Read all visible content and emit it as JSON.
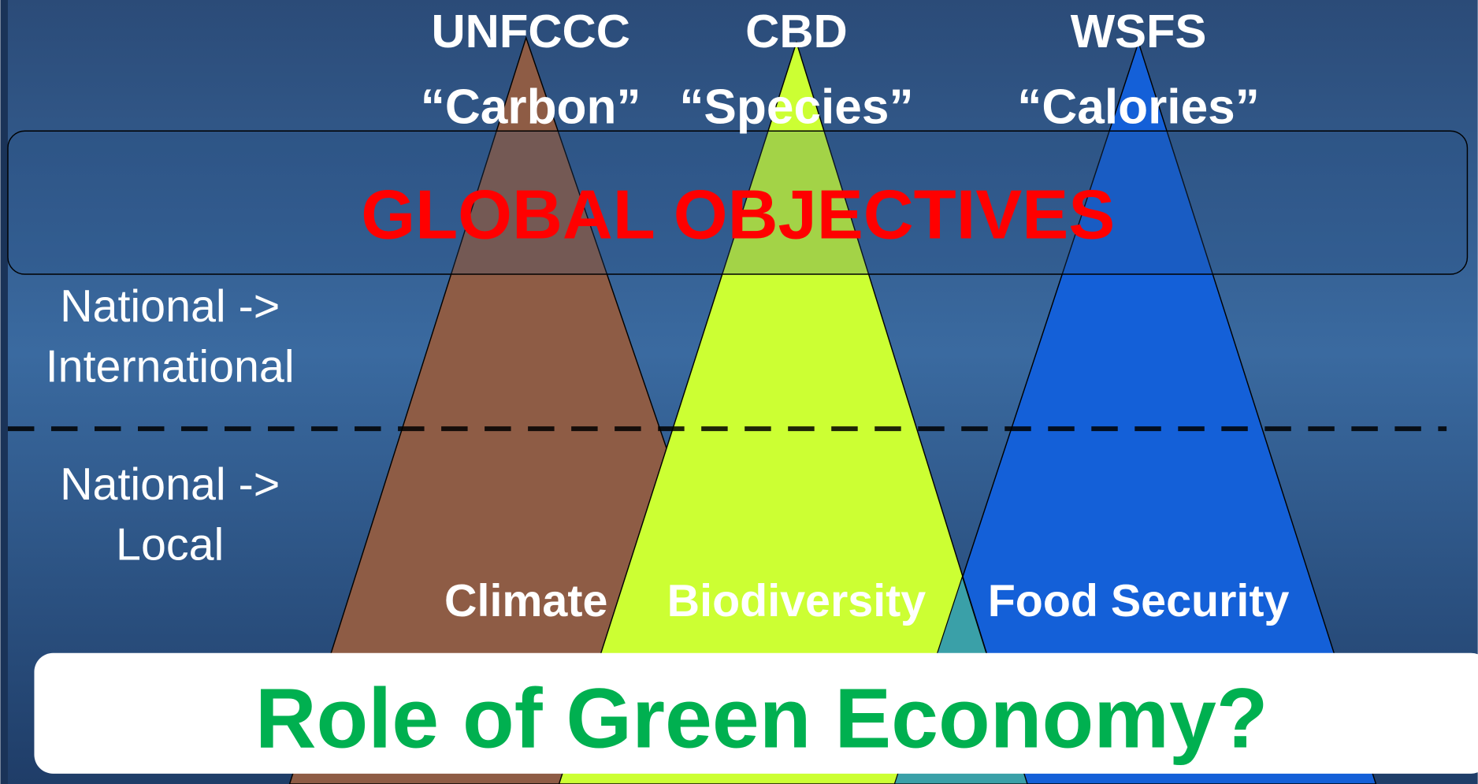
{
  "pillars": [
    {
      "organization": "UNFCCC",
      "quote": "“Carbon”",
      "label": "Climate"
    },
    {
      "organization": "CBD",
      "quote": "“Species”",
      "label": "Biodiversity"
    },
    {
      "organization": "WSFS",
      "quote": "“Calories”",
      "label": "Food Security"
    }
  ],
  "global_band": "GLOBAL  OBJECTIVES",
  "levels": [
    [
      "National ->",
      "International"
    ],
    [
      "National ->",
      "Local"
    ]
  ],
  "question": "Role of Green Economy?"
}
